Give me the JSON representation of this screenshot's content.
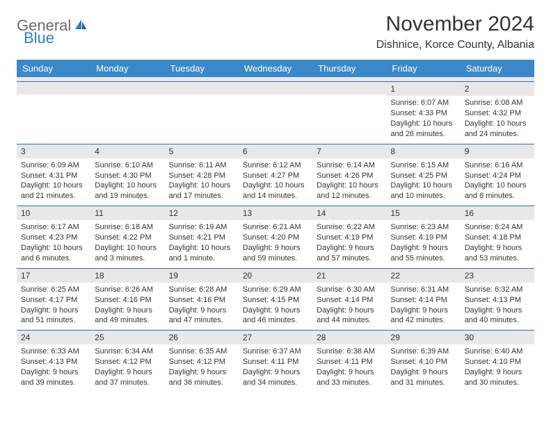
{
  "logo": {
    "general": "General",
    "blue": "Blue"
  },
  "title": "November 2024",
  "location": "Dishnice, Korce County, Albania",
  "colors": {
    "header_bg": "#3b88c9",
    "header_text": "#ffffff",
    "daynum_bg": "#e8e8e8",
    "row_border": "#2d6ea8",
    "logo_gray": "#6a6a6a",
    "logo_blue": "#2d7dc8"
  },
  "weekdays": [
    "Sunday",
    "Monday",
    "Tuesday",
    "Wednesday",
    "Thursday",
    "Friday",
    "Saturday"
  ],
  "weeks": [
    [
      {
        "day": "",
        "sunrise": "",
        "sunset": "",
        "daylight": ""
      },
      {
        "day": "",
        "sunrise": "",
        "sunset": "",
        "daylight": ""
      },
      {
        "day": "",
        "sunrise": "",
        "sunset": "",
        "daylight": ""
      },
      {
        "day": "",
        "sunrise": "",
        "sunset": "",
        "daylight": ""
      },
      {
        "day": "",
        "sunrise": "",
        "sunset": "",
        "daylight": ""
      },
      {
        "day": "1",
        "sunrise": "Sunrise: 6:07 AM",
        "sunset": "Sunset: 4:33 PM",
        "daylight": "Daylight: 10 hours and 26 minutes."
      },
      {
        "day": "2",
        "sunrise": "Sunrise: 6:08 AM",
        "sunset": "Sunset: 4:32 PM",
        "daylight": "Daylight: 10 hours and 24 minutes."
      }
    ],
    [
      {
        "day": "3",
        "sunrise": "Sunrise: 6:09 AM",
        "sunset": "Sunset: 4:31 PM",
        "daylight": "Daylight: 10 hours and 21 minutes."
      },
      {
        "day": "4",
        "sunrise": "Sunrise: 6:10 AM",
        "sunset": "Sunset: 4:30 PM",
        "daylight": "Daylight: 10 hours and 19 minutes."
      },
      {
        "day": "5",
        "sunrise": "Sunrise: 6:11 AM",
        "sunset": "Sunset: 4:28 PM",
        "daylight": "Daylight: 10 hours and 17 minutes."
      },
      {
        "day": "6",
        "sunrise": "Sunrise: 6:12 AM",
        "sunset": "Sunset: 4:27 PM",
        "daylight": "Daylight: 10 hours and 14 minutes."
      },
      {
        "day": "7",
        "sunrise": "Sunrise: 6:14 AM",
        "sunset": "Sunset: 4:26 PM",
        "daylight": "Daylight: 10 hours and 12 minutes."
      },
      {
        "day": "8",
        "sunrise": "Sunrise: 6:15 AM",
        "sunset": "Sunset: 4:25 PM",
        "daylight": "Daylight: 10 hours and 10 minutes."
      },
      {
        "day": "9",
        "sunrise": "Sunrise: 6:16 AM",
        "sunset": "Sunset: 4:24 PM",
        "daylight": "Daylight: 10 hours and 8 minutes."
      }
    ],
    [
      {
        "day": "10",
        "sunrise": "Sunrise: 6:17 AM",
        "sunset": "Sunset: 4:23 PM",
        "daylight": "Daylight: 10 hours and 6 minutes."
      },
      {
        "day": "11",
        "sunrise": "Sunrise: 6:18 AM",
        "sunset": "Sunset: 4:22 PM",
        "daylight": "Daylight: 10 hours and 3 minutes."
      },
      {
        "day": "12",
        "sunrise": "Sunrise: 6:19 AM",
        "sunset": "Sunset: 4:21 PM",
        "daylight": "Daylight: 10 hours and 1 minute."
      },
      {
        "day": "13",
        "sunrise": "Sunrise: 6:21 AM",
        "sunset": "Sunset: 4:20 PM",
        "daylight": "Daylight: 9 hours and 59 minutes."
      },
      {
        "day": "14",
        "sunrise": "Sunrise: 6:22 AM",
        "sunset": "Sunset: 4:19 PM",
        "daylight": "Daylight: 9 hours and 57 minutes."
      },
      {
        "day": "15",
        "sunrise": "Sunrise: 6:23 AM",
        "sunset": "Sunset: 4:19 PM",
        "daylight": "Daylight: 9 hours and 55 minutes."
      },
      {
        "day": "16",
        "sunrise": "Sunrise: 6:24 AM",
        "sunset": "Sunset: 4:18 PM",
        "daylight": "Daylight: 9 hours and 53 minutes."
      }
    ],
    [
      {
        "day": "17",
        "sunrise": "Sunrise: 6:25 AM",
        "sunset": "Sunset: 4:17 PM",
        "daylight": "Daylight: 9 hours and 51 minutes."
      },
      {
        "day": "18",
        "sunrise": "Sunrise: 6:26 AM",
        "sunset": "Sunset: 4:16 PM",
        "daylight": "Daylight: 9 hours and 49 minutes."
      },
      {
        "day": "19",
        "sunrise": "Sunrise: 6:28 AM",
        "sunset": "Sunset: 4:16 PM",
        "daylight": "Daylight: 9 hours and 47 minutes."
      },
      {
        "day": "20",
        "sunrise": "Sunrise: 6:29 AM",
        "sunset": "Sunset: 4:15 PM",
        "daylight": "Daylight: 9 hours and 46 minutes."
      },
      {
        "day": "21",
        "sunrise": "Sunrise: 6:30 AM",
        "sunset": "Sunset: 4:14 PM",
        "daylight": "Daylight: 9 hours and 44 minutes."
      },
      {
        "day": "22",
        "sunrise": "Sunrise: 6:31 AM",
        "sunset": "Sunset: 4:14 PM",
        "daylight": "Daylight: 9 hours and 42 minutes."
      },
      {
        "day": "23",
        "sunrise": "Sunrise: 6:32 AM",
        "sunset": "Sunset: 4:13 PM",
        "daylight": "Daylight: 9 hours and 40 minutes."
      }
    ],
    [
      {
        "day": "24",
        "sunrise": "Sunrise: 6:33 AM",
        "sunset": "Sunset: 4:13 PM",
        "daylight": "Daylight: 9 hours and 39 minutes."
      },
      {
        "day": "25",
        "sunrise": "Sunrise: 6:34 AM",
        "sunset": "Sunset: 4:12 PM",
        "daylight": "Daylight: 9 hours and 37 minutes."
      },
      {
        "day": "26",
        "sunrise": "Sunrise: 6:35 AM",
        "sunset": "Sunset: 4:12 PM",
        "daylight": "Daylight: 9 hours and 36 minutes."
      },
      {
        "day": "27",
        "sunrise": "Sunrise: 6:37 AM",
        "sunset": "Sunset: 4:11 PM",
        "daylight": "Daylight: 9 hours and 34 minutes."
      },
      {
        "day": "28",
        "sunrise": "Sunrise: 6:38 AM",
        "sunset": "Sunset: 4:11 PM",
        "daylight": "Daylight: 9 hours and 33 minutes."
      },
      {
        "day": "29",
        "sunrise": "Sunrise: 6:39 AM",
        "sunset": "Sunset: 4:10 PM",
        "daylight": "Daylight: 9 hours and 31 minutes."
      },
      {
        "day": "30",
        "sunrise": "Sunrise: 6:40 AM",
        "sunset": "Sunset: 4:10 PM",
        "daylight": "Daylight: 9 hours and 30 minutes."
      }
    ]
  ]
}
